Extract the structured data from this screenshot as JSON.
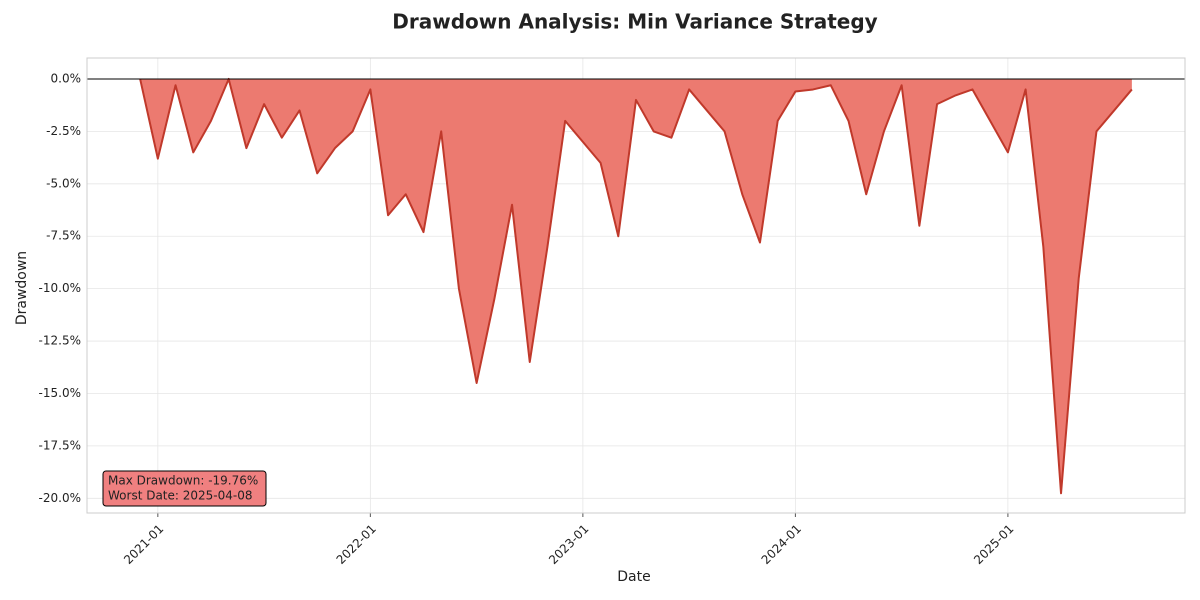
{
  "chart_data": {
    "type": "area",
    "title": "Drawdown Analysis: Min Variance Strategy",
    "x_label": "Date",
    "y_label": "Drawdown",
    "x": [
      "2020-12",
      "2021-01",
      "2021-02",
      "2021-03",
      "2021-04",
      "2021-05",
      "2021-06",
      "2021-07",
      "2021-08",
      "2021-09",
      "2021-10",
      "2021-11",
      "2021-12",
      "2022-01",
      "2022-02",
      "2022-03",
      "2022-04",
      "2022-05",
      "2022-06",
      "2022-07",
      "2022-08",
      "2022-09",
      "2022-10",
      "2022-11",
      "2022-12",
      "2023-01",
      "2023-02",
      "2023-03",
      "2023-04",
      "2023-05",
      "2023-06",
      "2023-07",
      "2023-08",
      "2023-09",
      "2023-10",
      "2023-11",
      "2023-12",
      "2024-01",
      "2024-02",
      "2024-03",
      "2024-04",
      "2024-05",
      "2024-06",
      "2024-07",
      "2024-08",
      "2024-09",
      "2024-10",
      "2024-11",
      "2024-12",
      "2025-01",
      "2025-02",
      "2025-03",
      "2025-04",
      "2025-05",
      "2025-06",
      "2025-07",
      "2025-08"
    ],
    "series": [
      {
        "name": "Drawdown",
        "color": "#c0392b",
        "fill": "#ec7a70",
        "values": [
          0,
          -3.8,
          -0.3,
          -3.5,
          -2.0,
          0,
          -3.3,
          -1.2,
          -2.8,
          -1.5,
          -4.5,
          -3.3,
          -2.5,
          -0.5,
          -6.5,
          -5.5,
          -7.3,
          -2.5,
          -10.0,
          -14.5,
          -10.5,
          -6.0,
          -13.5,
          -8.0,
          -2.0,
          -3.0,
          -4.0,
          -7.5,
          -1.0,
          -2.5,
          -2.8,
          -0.5,
          -1.5,
          -2.5,
          -5.5,
          -7.8,
          -2.0,
          -0.6,
          -0.5,
          -0.3,
          -2.0,
          -5.5,
          -2.5,
          -0.3,
          -7.0,
          -1.2,
          -0.8,
          -0.5,
          -2.0,
          -3.5,
          -0.5,
          -8.0,
          -19.76,
          -9.5,
          -2.5,
          -1.5,
          -0.5
        ]
      }
    ],
    "xlim": [
      "2020-09",
      "2025-11"
    ],
    "xticks": [
      "2021-01",
      "2022-01",
      "2023-01",
      "2024-01",
      "2025-01"
    ],
    "ylim": [
      -20.7,
      1.0
    ],
    "yticks": [
      {
        "value": 0,
        "label": "0.0%"
      },
      {
        "value": -2.5,
        "label": "-2.5%"
      },
      {
        "value": -5,
        "label": "-5.0%"
      },
      {
        "value": -7.5,
        "label": "-7.5%"
      },
      {
        "value": -10,
        "label": "-10.0%"
      },
      {
        "value": -12.5,
        "label": "-12.5%"
      },
      {
        "value": -15,
        "label": "-15.0%"
      },
      {
        "value": -17.5,
        "label": "-17.5%"
      },
      {
        "value": -20,
        "label": "-20.0%"
      }
    ],
    "reference_line": 0,
    "grid": true,
    "annotations": [
      "Max Drawdown: -19.76%",
      "Worst Date: 2025-04-08"
    ]
  }
}
